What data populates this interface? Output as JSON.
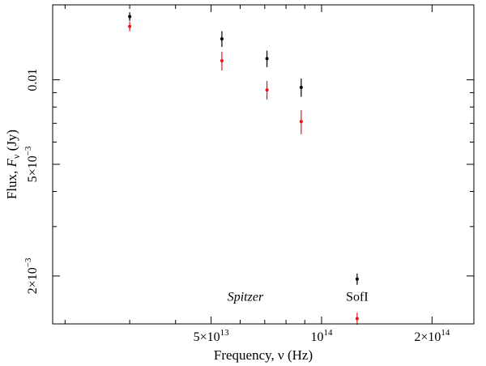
{
  "chart_data": {
    "type": "scatter",
    "xlabel_text": "Frequency, ν (Hz)",
    "ylabel_text": "Flux, F_ν (Jy)",
    "ylabel_parts": {
      "prefix": "Flux, ",
      "symbol": "F",
      "subscript": "ν",
      "suffix": " (Jy)"
    },
    "x_scale": "log",
    "y_scale": "log",
    "xlim": [
      18500000000000.0,
      260000000000000.0
    ],
    "ylim": [
      0.00135,
      0.0185
    ],
    "x_ticks_major": [
      {
        "value": 50000000000000.0,
        "mantissa": "5×10",
        "exp": "13"
      },
      {
        "value": 100000000000000.0,
        "mantissa": "10",
        "exp": "14"
      },
      {
        "value": 200000000000000.0,
        "mantissa": "2×10",
        "exp": "14"
      }
    ],
    "y_ticks_major": [
      {
        "value": 0.01,
        "text": "0.01",
        "mantissa": "",
        "exp": ""
      },
      {
        "value": 0.005,
        "text": "",
        "mantissa": "5×10",
        "exp": "−3"
      },
      {
        "value": 0.002,
        "text": "",
        "mantissa": "2×10",
        "exp": "−3"
      }
    ],
    "series": [
      {
        "color": "#000000",
        "points": [
          {
            "x": 30000000000000.0,
            "y": 0.0168,
            "err": 0.0006
          },
          {
            "x": 53500000000000.0,
            "y": 0.014,
            "err": 0.0009
          },
          {
            "x": 71000000000000.0,
            "y": 0.0119,
            "err": 0.0008
          },
          {
            "x": 88000000000000.0,
            "y": 0.0094,
            "err": 0.0007
          },
          {
            "x": 125000000000000.0,
            "y": 0.00195,
            "err": 9e-05
          }
        ]
      },
      {
        "color": "#e8141b",
        "points": [
          {
            "x": 30000000000000.0,
            "y": 0.0155,
            "err": 0.0006
          },
          {
            "x": 53500000000000.0,
            "y": 0.0117,
            "err": 0.0009
          },
          {
            "x": 71000000000000.0,
            "y": 0.0092,
            "err": 0.0007
          },
          {
            "x": 88000000000000.0,
            "y": 0.0071,
            "err": 0.0007
          },
          {
            "x": 125000000000000.0,
            "y": 0.00141,
            "err": 7e-05
          }
        ]
      }
    ],
    "annotations": [
      {
        "id": "spitzer",
        "text": "Spitzer",
        "italic": true,
        "x": 62000000000000.0,
        "y": 0.00163
      },
      {
        "id": "sofi",
        "text": "SofI",
        "italic": false,
        "x": 125000000000000.0,
        "y": 0.00163
      }
    ],
    "grid": false,
    "legend": "none"
  }
}
